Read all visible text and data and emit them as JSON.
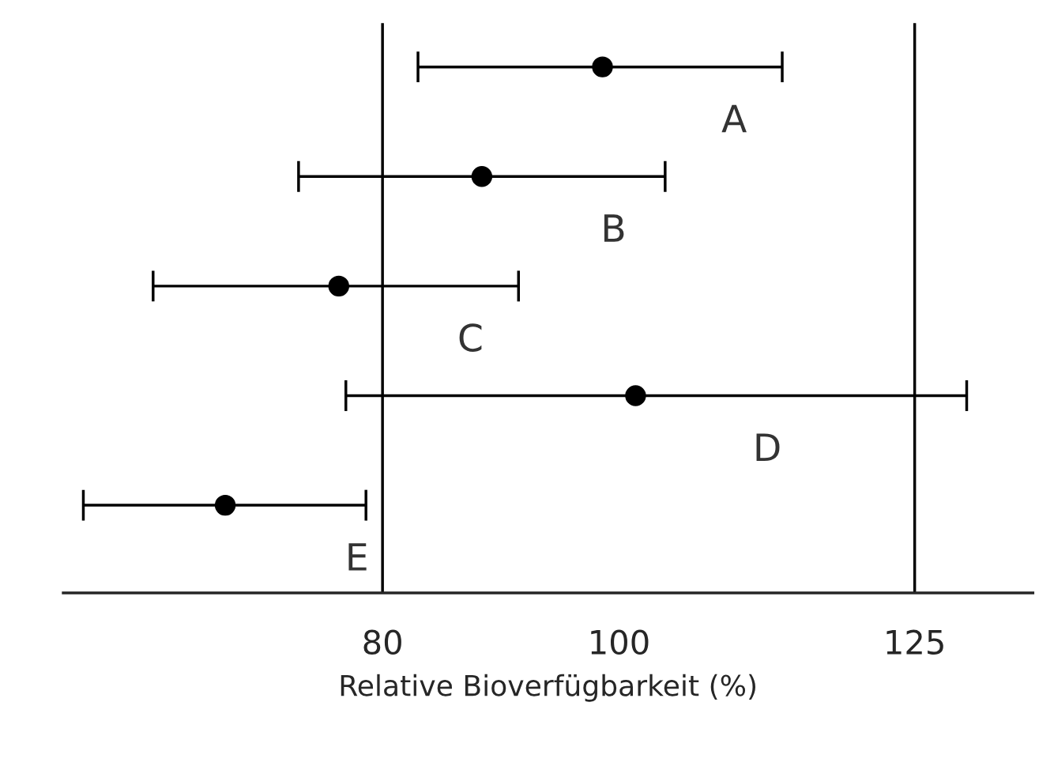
{
  "chart_data": {
    "type": "scatter",
    "orientation": "horizontal",
    "categories": [
      "A",
      "B",
      "C",
      "D",
      "E"
    ],
    "values": [
      98.6,
      88.4,
      76.3,
      101.4,
      66.7
    ],
    "errors": [
      [
        83.0,
        113.8
      ],
      [
        72.9,
        103.9
      ],
      [
        60.6,
        91.5
      ],
      [
        76.9,
        129.4
      ],
      [
        54.7,
        78.6
      ]
    ],
    "color": "#000000",
    "marker": "circle",
    "xlim": [
      53,
      135
    ],
    "xticks": [
      80,
      100,
      125
    ],
    "xlabel": "Relative Bioverfügbarkeit (%)",
    "ref_lines": [
      {
        "axis": "x",
        "value": 80,
        "label": null,
        "color": "#000000"
      },
      {
        "axis": "x",
        "value": 125,
        "label": null,
        "color": "#000000"
      }
    ],
    "tick_labels": "x",
    "grid": false,
    "legend": false
  }
}
